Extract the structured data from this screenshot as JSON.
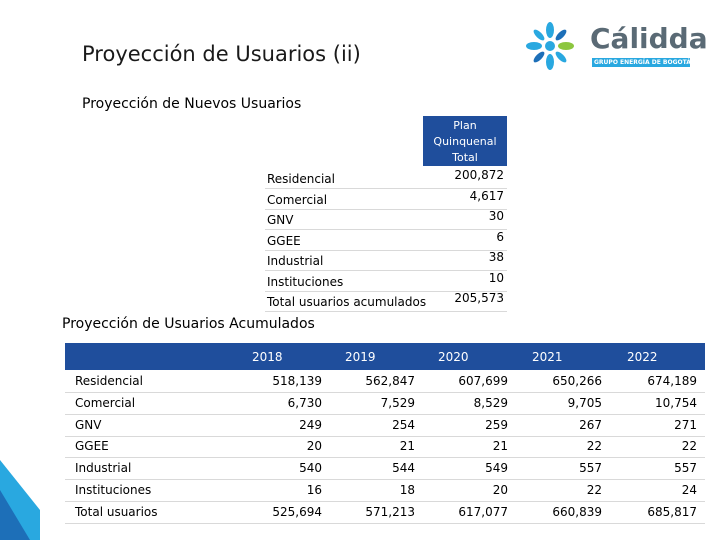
{
  "header": {
    "title": "Proyección de Usuarios (ii)",
    "logo_text": "Cálidda",
    "logo_subtitle": "GRUPO ENERGÍA DE BOGOTÁ"
  },
  "section1": {
    "title": "Proyección de Nuevos Usuarios",
    "table": {
      "header": "Plan Quinquenal Total",
      "rows": [
        [
          "Residencial",
          "200,872"
        ],
        [
          "Comercial",
          "4,617"
        ],
        [
          "GNV",
          "30"
        ],
        [
          "GGEE",
          "6"
        ],
        [
          "Industrial",
          "38"
        ],
        [
          "Instituciones",
          "10"
        ],
        [
          "Total usuarios acumulados",
          "205,573"
        ]
      ]
    }
  },
  "section2": {
    "title": "Proyección de Usuarios Acumulados",
    "table": {
      "columns": [
        "2018",
        "2019",
        "2020",
        "2021",
        "2022"
      ],
      "rows": [
        [
          "Residencial",
          "518,139",
          "562,847",
          "607,699",
          "650,266",
          "674,189"
        ],
        [
          "Comercial",
          "6,730",
          "7,529",
          "8,529",
          "9,705",
          "10,754"
        ],
        [
          "GNV",
          "249",
          "254",
          "259",
          "267",
          "271"
        ],
        [
          "GGEE",
          "20",
          "21",
          "21",
          "22",
          "22"
        ],
        [
          "Industrial",
          "540",
          "544",
          "549",
          "557",
          "557"
        ],
        [
          "Instituciones",
          "16",
          "18",
          "20",
          "22",
          "24"
        ],
        [
          "Total usuarios",
          "525,694",
          "571,213",
          "617,077",
          "660,839",
          "685,817"
        ]
      ]
    }
  }
}
